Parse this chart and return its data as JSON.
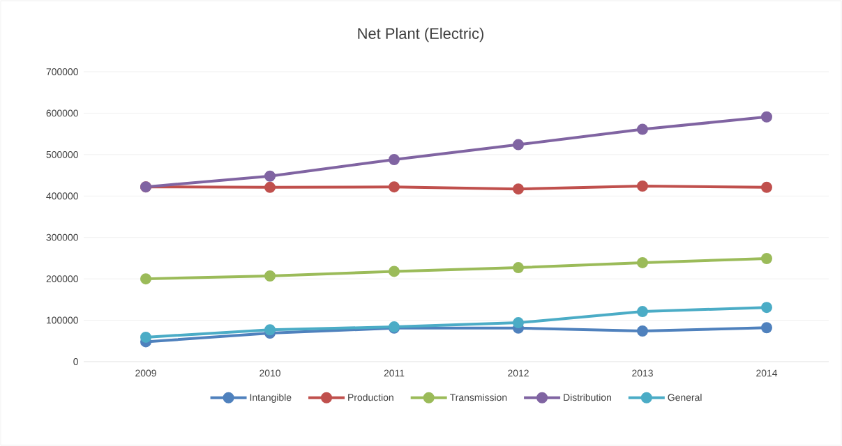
{
  "chart_data": {
    "type": "line",
    "title": "Net Plant (Electric)",
    "categories": [
      "2009",
      "2010",
      "2011",
      "2012",
      "2013",
      "2014"
    ],
    "series": [
      {
        "name": "Intangible",
        "color": "#4f81bd",
        "values": [
          48000,
          69000,
          81000,
          81000,
          74000,
          82000
        ]
      },
      {
        "name": "Production",
        "color": "#c0504d",
        "values": [
          422000,
          421000,
          422000,
          417000,
          424000,
          421000
        ]
      },
      {
        "name": "Transmission",
        "color": "#9bbb59",
        "values": [
          200000,
          207000,
          218000,
          227000,
          239000,
          249000
        ]
      },
      {
        "name": "Distribution",
        "color": "#8064a2",
        "values": [
          422000,
          448000,
          488000,
          524000,
          561000,
          591000
        ]
      },
      {
        "name": "General",
        "color": "#4bacc6",
        "values": [
          59000,
          77000,
          84000,
          94000,
          121000,
          131000
        ]
      }
    ],
    "ylim": [
      0,
      700000
    ],
    "yticks": [
      0,
      100000,
      200000,
      300000,
      400000,
      500000,
      600000,
      700000
    ],
    "grid": "y",
    "legend": "bottom",
    "marker": "circle",
    "line_style": "solid"
  }
}
